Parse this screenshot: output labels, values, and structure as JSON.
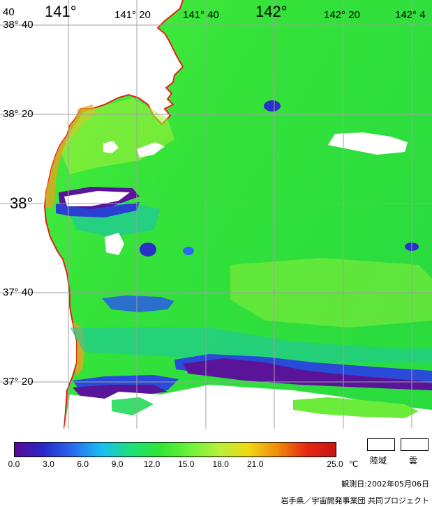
{
  "map": {
    "lon_labels": [
      "141°",
      "141° 20",
      "141° 40",
      "142°",
      "142° 20",
      "142° 4"
    ],
    "lat_labels": [
      "38° 40",
      "38° 20",
      "38°",
      "37° 40",
      "37° 20"
    ],
    "corner_label": "40",
    "palette": [
      "#5a0a96",
      "#2828c8",
      "#2a6cf0",
      "#17bff0",
      "#1ee07a",
      "#32e632",
      "#6cf23a",
      "#b6f03a",
      "#f0d814",
      "#f08c0a",
      "#e62814",
      "#c81414"
    ]
  },
  "legend": {
    "ticks": [
      "0.0",
      "3.0",
      "6.0",
      "9.0",
      "12.0",
      "15.0",
      "18.0",
      "21.0",
      "25.0"
    ],
    "unit": "℃",
    "land_label": "陸域",
    "cloud_label": "雲"
  },
  "footer": {
    "observed": "観測日:2002年05月06日",
    "credit": "岩手県／宇宙開発事業団 共同プロジェクト"
  }
}
